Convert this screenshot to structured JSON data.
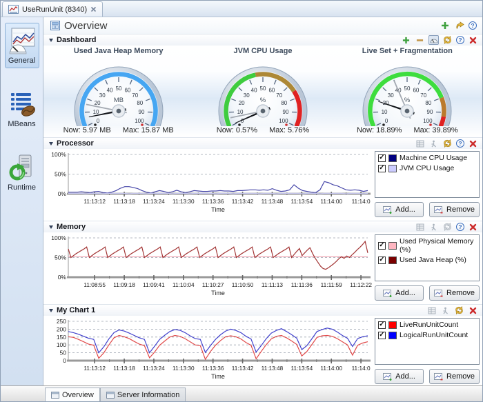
{
  "window": {
    "tab_title": "UseRunUnit (8340)"
  },
  "header": {
    "title": "Overview"
  },
  "sidebar": {
    "items": [
      {
        "label": "General"
      },
      {
        "label": "MBeans"
      },
      {
        "label": "Runtime"
      }
    ]
  },
  "dashboard": {
    "title": "Dashboard",
    "gauges": [
      {
        "title": "Used Java Heap Memory",
        "unit": "MB",
        "now": 5.97,
        "peak": 15.87,
        "now_label": "Now: 5.97 MB",
        "max_label": "Max: 15.87 MB",
        "segments": [
          {
            "from": 0,
            "to": 100,
            "color": "#46a6f2"
          }
        ]
      },
      {
        "title": "JVM CPU Usage",
        "unit": "%",
        "now": 0.57,
        "peak": 5.76,
        "now_label": "Now: 0.57%",
        "max_label": "Max: 5.76%",
        "segments": [
          {
            "from": 0,
            "to": 45,
            "color": "#3ecc3e"
          },
          {
            "from": 45,
            "to": 75,
            "color": "#ad8836"
          },
          {
            "from": 75,
            "to": 100,
            "color": "#e02222"
          }
        ]
      },
      {
        "title": "Live Set + Fragmentation",
        "unit": "%",
        "now": 18.89,
        "peak": 39.89,
        "now_label": "Now: 18.89%",
        "max_label": "Max: 39.89%",
        "segments": [
          {
            "from": 0,
            "to": 80,
            "color": "#3edd3e"
          },
          {
            "from": 80,
            "to": 93,
            "color": "#bb7a2c"
          },
          {
            "from": 93,
            "to": 100,
            "color": "#e02222"
          }
        ]
      }
    ]
  },
  "chart_actions": {
    "add_label": "Add...",
    "remove_label": "Remove"
  },
  "sections": {
    "processor": {
      "title": "Processor",
      "legend": [
        {
          "label": "Machine CPU Usage",
          "color": "#00007f"
        },
        {
          "label": "JVM CPU Usage",
          "color": "#ccccff"
        }
      ]
    },
    "memory": {
      "title": "Memory",
      "legend": [
        {
          "label": "Used Physical Memory (%)",
          "color": "#ffb6c1"
        },
        {
          "label": "Used Java Heap (%)",
          "color": "#7a0000"
        }
      ]
    },
    "mychart": {
      "title": "My Chart 1",
      "legend": [
        {
          "label": "LiveRunUnitCount",
          "color": "#ff0000"
        },
        {
          "label": "LogicalRunUnitCount",
          "color": "#0000ff"
        }
      ]
    }
  },
  "bottom_tabs": [
    {
      "label": "Overview"
    },
    {
      "label": "Server Information"
    }
  ],
  "chart_data": [
    {
      "panel": "Processor",
      "type": "line",
      "xlabel": "Time",
      "ylim": [
        0,
        100
      ],
      "grid": "dashed",
      "legend_position": "right",
      "yticks": [
        {
          "label": "0%",
          "value": 0
        },
        {
          "label": "50%",
          "value": 50
        },
        {
          "label": "100%",
          "value": 100
        }
      ],
      "xticks": [
        "11:13:12",
        "11:13:18",
        "11:13:24",
        "11:13:30",
        "11:13:36",
        "11:13:42",
        "11:13:48",
        "11:13:54",
        "11:14:00",
        "11:14:0"
      ],
      "series": [
        {
          "name": "Machine CPU Usage",
          "color": "#4646a8",
          "values": [
            4,
            4,
            4,
            5,
            4,
            3,
            5,
            6,
            3,
            2,
            4,
            8,
            14,
            18,
            18,
            16,
            13,
            8,
            4,
            2,
            5,
            8,
            6,
            3,
            5,
            9,
            5,
            3,
            5,
            8,
            7,
            6,
            6,
            7,
            7,
            8,
            7,
            7,
            6,
            8,
            8,
            9,
            10,
            10,
            9,
            10,
            9,
            13,
            9,
            6,
            7,
            10,
            23,
            14,
            8,
            6,
            4,
            3,
            10,
            31,
            28,
            23,
            20,
            15,
            10,
            9,
            10,
            9,
            6,
            8
          ]
        },
        {
          "name": "JVM CPU Usage",
          "color": "#c8c8f0",
          "values": [
            1,
            1,
            1,
            1,
            0,
            1,
            1,
            1,
            0,
            1,
            1,
            1,
            1,
            1,
            0,
            1,
            1,
            1,
            0,
            1,
            1,
            1,
            1,
            1,
            0,
            1,
            1,
            1,
            0,
            1,
            1,
            1,
            1,
            1,
            0,
            1,
            1,
            1,
            0,
            1,
            1,
            1,
            1,
            1,
            0,
            1,
            1,
            1,
            0,
            1,
            1,
            1,
            1,
            1,
            0,
            1,
            1,
            1,
            0,
            1,
            1,
            1,
            1,
            1,
            0,
            1,
            1,
            1,
            0,
            1
          ]
        }
      ]
    },
    {
      "panel": "Memory",
      "type": "line",
      "xlabel": "Time",
      "ylim": [
        0,
        100
      ],
      "grid": "dashed",
      "legend_position": "right",
      "yticks": [
        {
          "label": "0%",
          "value": 0
        },
        {
          "label": "50%",
          "value": 50
        },
        {
          "label": "100%",
          "value": 100
        }
      ],
      "xticks": [
        "11:08:55",
        "11:09:18",
        "11:09:41",
        "11:10:04",
        "11:10:27",
        "11:10:50",
        "11:11:13",
        "11:11:36",
        "11:11:59",
        "11:12:22"
      ],
      "series": [
        {
          "name": "Used Physical Memory (%)",
          "color": "#f2aab8",
          "values": [
            52,
            52,
            52,
            52,
            52,
            52,
            52,
            52,
            52,
            52
          ]
        },
        {
          "name": "Used Java Heap (%)",
          "color": "#a23434",
          "values": [
            72,
            50,
            55,
            60,
            64,
            68,
            72,
            77,
            50,
            55,
            60,
            64,
            68,
            72,
            77,
            50,
            55,
            60,
            64,
            68,
            72,
            77,
            50,
            55,
            60,
            64,
            68,
            72,
            77,
            50,
            55,
            60,
            64,
            68,
            72,
            77,
            50,
            55,
            60,
            64,
            68,
            72,
            77,
            50,
            55,
            60,
            64,
            68,
            72,
            77,
            50,
            55,
            60,
            64,
            68,
            72,
            77,
            50,
            55,
            60,
            64,
            68,
            72,
            77,
            50,
            55,
            60,
            64,
            68,
            72,
            77,
            50,
            55,
            60,
            64,
            68,
            72,
            77,
            50,
            55,
            60,
            64,
            68,
            72,
            77,
            50,
            58,
            66,
            73,
            55,
            62,
            69,
            75,
            60,
            48,
            38,
            28,
            22,
            20,
            24,
            29,
            34,
            40,
            47,
            52,
            48,
            54,
            50,
            57,
            63,
            70,
            76,
            83,
            91,
            62
          ]
        }
      ]
    },
    {
      "panel": "My Chart 1",
      "type": "line",
      "xlabel": "Time",
      "ylim": [
        0,
        250
      ],
      "grid": "dashed",
      "legend_position": "right",
      "yticks": [
        {
          "label": "0",
          "value": 0
        },
        {
          "label": "50",
          "value": 50
        },
        {
          "label": "100",
          "value": 100
        },
        {
          "label": "150",
          "value": 150
        },
        {
          "label": "200",
          "value": 200
        },
        {
          "label": "250",
          "value": 250
        }
      ],
      "xticks": [
        "11:13:12",
        "11:13:18",
        "11:13:24",
        "11:13:30",
        "11:13:36",
        "11:13:42",
        "11:13:48",
        "11:13:54",
        "11:14:00",
        "11:14:0"
      ],
      "series": [
        {
          "name": "LiveRunUnitCount",
          "color": "#e04848",
          "values": [
            152,
            148,
            135,
            120,
            105,
            98,
            15,
            50,
            100,
            145,
            160,
            152,
            140,
            122,
            105,
            95,
            18,
            55,
            98,
            125,
            150,
            160,
            155,
            140,
            120,
            100,
            95,
            8,
            58,
            98,
            128,
            152,
            158,
            152,
            138,
            115,
            98,
            12,
            58,
            102,
            138,
            155,
            160,
            145,
            125,
            103,
            30,
            58,
            103,
            148,
            158,
            160,
            155,
            140,
            120,
            100,
            35,
            98,
            112,
            120
          ]
        },
        {
          "name": "LogicalRunUnitCount",
          "color": "#4040cc",
          "values": [
            185,
            178,
            168,
            155,
            142,
            135,
            50,
            88,
            138,
            178,
            195,
            188,
            175,
            160,
            145,
            135,
            50,
            92,
            135,
            162,
            185,
            198,
            193,
            178,
            158,
            140,
            135,
            52,
            95,
            135,
            165,
            188,
            200,
            192,
            178,
            155,
            138,
            55,
            95,
            140,
            175,
            192,
            203,
            185,
            165,
            143,
            70,
            95,
            140,
            185,
            198,
            207,
            200,
            182,
            160,
            142,
            90,
            140,
            152,
            158
          ]
        }
      ]
    }
  ]
}
